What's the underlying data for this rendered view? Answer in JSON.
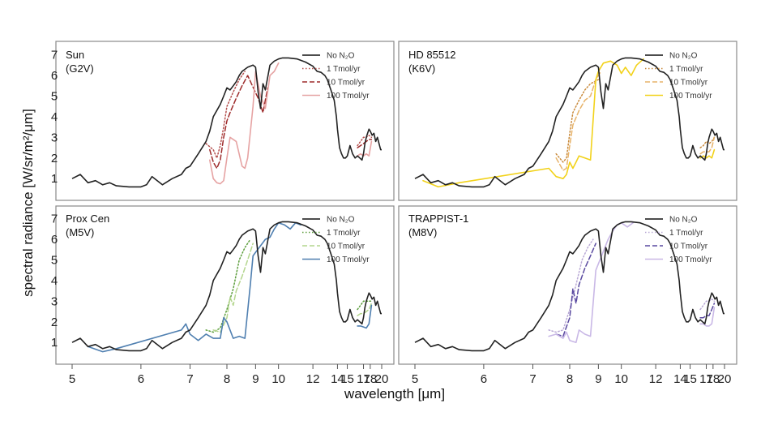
{
  "chart_data": {
    "type": "line",
    "ylabel": "spectral radiance [W/sr/m²/μm]",
    "xlabel": "wavelength [μm]",
    "xlim": [
      5,
      20
    ],
    "ylim": [
      0.3,
      7.3
    ],
    "x_ticks": [
      5,
      6,
      7,
      8,
      9,
      10,
      12,
      14,
      15,
      17,
      18,
      20
    ],
    "x_tick_labels": [
      "5",
      "6",
      "7",
      "8",
      "9",
      "10",
      "12",
      "14",
      "15",
      "17",
      "18",
      "20"
    ],
    "y_ticks": [
      1,
      2,
      3,
      4,
      5,
      6,
      7
    ],
    "x_scale": "reciprocal (wavenumber-linear)",
    "grid": false,
    "legend_position": "top-right",
    "baseline_x": [
      5.0,
      5.1,
      5.2,
      5.3,
      5.4,
      5.5,
      5.6,
      5.8,
      6.0,
      6.1,
      6.2,
      6.4,
      6.6,
      6.8,
      6.9,
      7.0,
      7.2,
      7.4,
      7.5,
      7.6,
      7.8,
      7.9,
      8.0,
      8.1,
      8.2,
      8.3,
      8.4,
      8.5,
      8.7,
      8.9,
      9.0,
      9.1,
      9.2,
      9.3,
      9.4,
      9.6,
      9.8,
      10.0,
      10.2,
      10.5,
      11.0,
      11.5,
      12.0,
      12.3,
      12.6,
      12.9,
      13.1,
      13.4,
      13.7,
      13.9,
      14.0,
      14.2,
      14.4,
      14.6,
      14.8,
      15.0,
      15.3,
      15.6,
      15.9,
      16.2,
      16.5,
      16.8,
      17.0,
      17.2,
      17.4,
      17.6,
      17.8,
      18.0,
      18.3,
      18.6,
      18.9,
      19.2,
      19.5,
      19.8,
      20.0
    ],
    "baseline_y": [
      1.0,
      1.2,
      0.8,
      0.9,
      0.7,
      0.8,
      0.65,
      0.6,
      0.6,
      0.7,
      1.1,
      0.7,
      1.0,
      1.2,
      1.5,
      1.6,
      2.2,
      2.8,
      3.3,
      4.0,
      4.6,
      5.0,
      5.4,
      5.3,
      5.5,
      5.7,
      6.0,
      6.2,
      6.4,
      6.5,
      6.4,
      5.2,
      4.4,
      5.6,
      5.3,
      6.5,
      6.7,
      6.8,
      6.85,
      6.85,
      6.8,
      6.65,
      6.45,
      6.2,
      6.15,
      6.0,
      5.8,
      5.3,
      4.8,
      4.0,
      3.4,
      2.5,
      2.2,
      2.0,
      2.0,
      2.1,
      2.6,
      2.2,
      2.0,
      2.1,
      2.0,
      1.9,
      2.2,
      2.7,
      3.0,
      3.2,
      3.4,
      3.3,
      3.1,
      3.2,
      2.8,
      3.0,
      2.7,
      2.4,
      2.4
    ],
    "panels": [
      {
        "title": "Sun",
        "subtitle": "(G2V)",
        "legend": [
          "No N₂O",
          "1 Tmol/yr",
          "10 Tmol/yr",
          "100 Tmol/yr"
        ],
        "colors": [
          "#111111",
          "#b5514f",
          "#9e2b2b",
          "#e6a3a3"
        ],
        "series": [
          {
            "name": "1 Tmol/yr",
            "dash": "dot",
            "color": "#b5514f",
            "x": [
              7.4,
              7.6,
              7.7,
              7.8,
              7.9,
              8.0,
              8.2,
              8.4,
              8.6,
              16.2,
              16.6,
              17.0,
              17.4,
              17.8,
              18.2
            ],
            "y": [
              2.7,
              2.4,
              2.0,
              2.6,
              3.5,
              4.5,
              5.2,
              5.8,
              6.2,
              2.6,
              2.8,
              3.0,
              3.0,
              3.1,
              3.0
            ]
          },
          {
            "name": "10 Tmol/yr",
            "dash": "dash",
            "color": "#9e2b2b",
            "x": [
              7.5,
              7.6,
              7.7,
              7.8,
              7.9,
              8.0,
              8.1,
              8.3,
              8.5,
              8.7,
              9.1,
              9.3,
              9.5,
              16.2,
              16.6,
              17.0,
              17.4,
              17.8,
              18.2
            ],
            "y": [
              2.4,
              1.8,
              1.5,
              1.9,
              3.0,
              3.8,
              4.2,
              4.9,
              5.5,
              6.0,
              4.9,
              4.2,
              5.4,
              2.5,
              2.6,
              2.7,
              2.8,
              2.9,
              2.9
            ]
          },
          {
            "name": "100 Tmol/yr",
            "dash": "solid",
            "color": "#e6a3a3",
            "x": [
              7.5,
              7.6,
              7.7,
              7.8,
              7.9,
              8.0,
              8.1,
              8.3,
              8.5,
              8.6,
              8.7,
              8.9,
              9.0,
              9.2,
              9.4,
              9.6,
              9.8,
              10.0,
              16.2,
              16.6,
              17.0,
              17.4,
              17.8,
              18.2
            ],
            "y": [
              1.9,
              1.0,
              0.8,
              0.75,
              0.9,
              2.0,
              3.0,
              2.8,
              1.6,
              1.5,
              2.0,
              4.5,
              6.2,
              5.0,
              4.4,
              6.0,
              6.2,
              6.6,
              2.1,
              2.2,
              2.1,
              2.2,
              2.1,
              2.8
            ]
          }
        ]
      },
      {
        "title": "HD 85512",
        "subtitle": "(K6V)",
        "legend": [
          "No N₂O",
          "1 Tmol/yr",
          "10 Tmol/yr",
          "100 Tmol/yr"
        ],
        "colors": [
          "#111111",
          "#c98a3c",
          "#e7b36a",
          "#f2d21a"
        ],
        "series": [
          {
            "name": "1 Tmol/yr",
            "dash": "dot",
            "color": "#c98a3c",
            "x": [
              7.6,
              7.8,
              7.9,
              8.0,
              8.1,
              8.3,
              8.5,
              8.7,
              9.0,
              16.2,
              16.6,
              17.0,
              17.4,
              17.8,
              18.2
            ],
            "y": [
              2.2,
              1.8,
              2.0,
              3.2,
              4.2,
              4.8,
              5.3,
              5.6,
              5.8,
              2.5,
              2.6,
              2.8,
              2.7,
              2.8,
              3.0
            ]
          },
          {
            "name": "10 Tmol/yr",
            "dash": "dash",
            "color": "#e7b36a",
            "x": [
              7.6,
              7.8,
              7.9,
              8.0,
              8.1,
              8.3,
              8.5,
              8.7,
              8.9,
              9.1,
              16.2,
              16.6,
              17.0,
              17.4,
              17.8,
              18.2
            ],
            "y": [
              2.0,
              1.4,
              1.5,
              2.6,
              3.6,
              4.3,
              4.8,
              5.0,
              5.8,
              6.2,
              2.2,
              2.3,
              2.3,
              2.3,
              2.5,
              3.0
            ]
          },
          {
            "name": "100 Tmol/yr",
            "dash": "solid",
            "color": "#f2d21a",
            "x": [
              5.1,
              5.3,
              5.6,
              7.4,
              7.6,
              7.8,
              7.9,
              8.0,
              8.1,
              8.2,
              8.3,
              8.5,
              8.7,
              8.9,
              9.0,
              9.2,
              9.5,
              9.8,
              10.0,
              10.2,
              10.5,
              10.8,
              11.2,
              16.2,
              16.6,
              17.0,
              17.4,
              17.8,
              18.2
            ],
            "y": [
              0.9,
              0.6,
              0.8,
              1.5,
              1.1,
              1.0,
              1.2,
              1.8,
              1.5,
              1.8,
              2.1,
              2.0,
              1.9,
              5.8,
              6.2,
              6.6,
              6.7,
              6.5,
              6.1,
              6.4,
              6.0,
              6.5,
              6.8,
              2.0,
              2.1,
              2.0,
              2.1,
              2.0,
              2.4
            ]
          }
        ]
      },
      {
        "title": "Prox Cen",
        "subtitle": "(M5V)",
        "legend": [
          "No N₂O",
          "1 Tmol/yr",
          "10 Tmol/yr",
          "100 Tmol/yr"
        ],
        "colors": [
          "#111111",
          "#5c9e3c",
          "#b4d68e",
          "#4f7fb0"
        ],
        "series": [
          {
            "name": "1 Tmol/yr",
            "dash": "dot",
            "color": "#5c9e3c",
            "x": [
              7.4,
              7.6,
              7.8,
              8.0,
              8.2,
              8.4,
              8.6,
              8.8,
              16.2,
              16.6,
              17.0,
              17.4,
              17.8,
              18.2
            ],
            "y": [
              1.6,
              1.5,
              1.7,
              2.6,
              3.6,
              5.0,
              5.6,
              6.0,
              2.6,
              2.8,
              3.0,
              3.0,
              3.0,
              3.0
            ]
          },
          {
            "name": "10 Tmol/yr",
            "dash": "dash",
            "color": "#b4d68e",
            "x": [
              7.6,
              7.8,
              8.0,
              8.1,
              8.2,
              8.3,
              8.5,
              8.7,
              8.9,
              16.2,
              16.6,
              17.0,
              17.4,
              17.8,
              18.2
            ],
            "y": [
              1.6,
              1.5,
              2.2,
              3.2,
              2.8,
              3.5,
              4.2,
              5.0,
              5.8,
              2.3,
              2.4,
              2.4,
              2.5,
              2.6,
              2.9
            ]
          },
          {
            "name": "100 Tmol/yr",
            "dash": "solid",
            "color": "#4f7fb0",
            "x": [
              5.2,
              5.4,
              5.6,
              6.8,
              6.9,
              7.0,
              7.2,
              7.4,
              7.6,
              7.8,
              7.9,
              8.0,
              8.2,
              8.4,
              8.6,
              8.8,
              8.9,
              9.4,
              9.6,
              9.8,
              10.0,
              10.3,
              10.6,
              10.9,
              11.2,
              16.2,
              16.6,
              17.0,
              17.4,
              17.8,
              18.2
            ],
            "y": [
              0.8,
              0.55,
              0.7,
              1.6,
              1.9,
              1.4,
              1.1,
              1.4,
              1.2,
              1.2,
              2.2,
              2.0,
              1.2,
              1.3,
              1.2,
              3.8,
              5.2,
              6.0,
              6.1,
              6.5,
              6.8,
              6.7,
              6.5,
              6.8,
              6.7,
              1.8,
              1.8,
              1.75,
              1.7,
              1.9,
              2.8
            ]
          }
        ]
      },
      {
        "title": "TRAPPIST-1",
        "subtitle": "(M8V)",
        "legend": [
          "No N₂O",
          "1 Tmol/yr",
          "10 Tmol/yr",
          "100 Tmol/yr"
        ],
        "colors": [
          "#111111",
          "#b9a9d6",
          "#5a4aa0",
          "#c9b8e6"
        ],
        "series": [
          {
            "name": "1 Tmol/yr",
            "dash": "dot",
            "color": "#b9a9d6",
            "x": [
              7.4,
              7.6,
              7.8,
              8.0,
              8.2,
              8.4,
              8.6,
              8.8,
              16.2,
              16.6,
              17.0,
              17.4,
              17.8,
              18.2
            ],
            "y": [
              1.6,
              1.5,
              1.6,
              2.6,
              3.8,
              5.0,
              5.6,
              6.0,
              2.6,
              2.8,
              3.0,
              3.0,
              3.1,
              3.0
            ]
          },
          {
            "name": "10 Tmol/yr",
            "dash": "dash",
            "color": "#5a4aa0",
            "x": [
              7.6,
              7.8,
              8.0,
              8.1,
              8.2,
              8.3,
              8.5,
              8.7,
              8.9,
              16.2,
              16.6,
              17.0,
              17.4,
              17.8,
              18.2
            ],
            "y": [
              1.4,
              1.3,
              2.2,
              3.6,
              2.9,
              3.8,
              4.6,
              5.2,
              5.8,
              2.2,
              2.2,
              2.3,
              2.3,
              2.6,
              2.9
            ]
          },
          {
            "name": "100 Tmol/yr",
            "dash": "solid",
            "color": "#c9b8e6",
            "x": [
              7.4,
              7.6,
              7.8,
              7.9,
              8.0,
              8.2,
              8.3,
              8.5,
              8.7,
              8.9,
              9.4,
              9.6,
              9.8,
              10.0,
              10.3,
              10.6,
              16.2,
              16.6,
              17.0,
              17.4,
              17.8,
              18.2
            ],
            "y": [
              1.3,
              1.4,
              1.2,
              1.5,
              1.1,
              1.0,
              1.6,
              1.4,
              1.3,
              4.5,
              6.0,
              6.4,
              6.7,
              6.8,
              6.6,
              6.8,
              1.9,
              1.9,
              1.8,
              1.8,
              1.9,
              2.7
            ]
          }
        ]
      }
    ]
  }
}
